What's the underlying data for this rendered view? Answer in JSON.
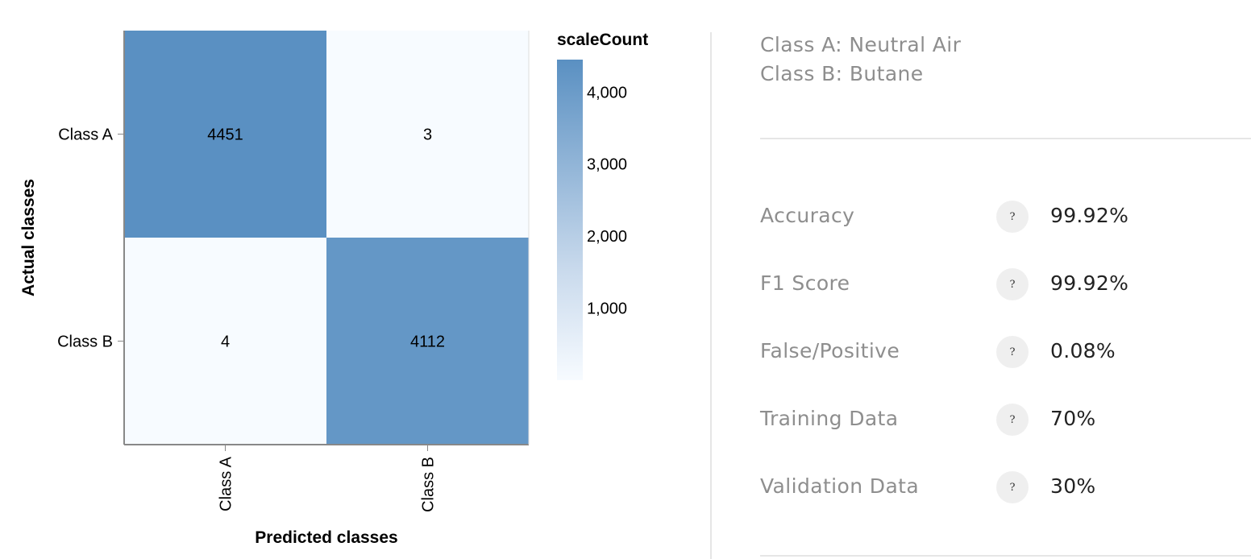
{
  "chart_data": {
    "type": "heatmap",
    "title": "",
    "xlabel": "Predicted classes",
    "ylabel": "Actual classes",
    "x_categories": [
      "Class A",
      "Class B"
    ],
    "y_categories": [
      "Class A",
      "Class B"
    ],
    "values": [
      [
        4451,
        3
      ],
      [
        4,
        4112
      ]
    ],
    "legend": {
      "title": "scaleCount",
      "ticks": [
        1000,
        2000,
        3000,
        4000
      ],
      "tick_labels": [
        "1,000",
        "2,000",
        "3,000",
        "4,000"
      ],
      "domain": [
        0,
        4451
      ],
      "placement": "right"
    },
    "colors": {
      "low": "#f7fbff",
      "high": "#5a90c2"
    },
    "grid": false
  },
  "class_info": {
    "class_a": "Class A: Neutral Air",
    "class_b": "Class B: Butane"
  },
  "metrics": [
    {
      "label": "Accuracy",
      "value": "99.92%",
      "help": "?"
    },
    {
      "label": "F1 Score",
      "value": "99.92%",
      "help": "?"
    },
    {
      "label": "False/Positive",
      "value": "0.08%",
      "help": "?"
    },
    {
      "label": "Training Data",
      "value": "70%",
      "help": "?"
    },
    {
      "label": "Validation Data",
      "value": "30%",
      "help": "?"
    }
  ]
}
